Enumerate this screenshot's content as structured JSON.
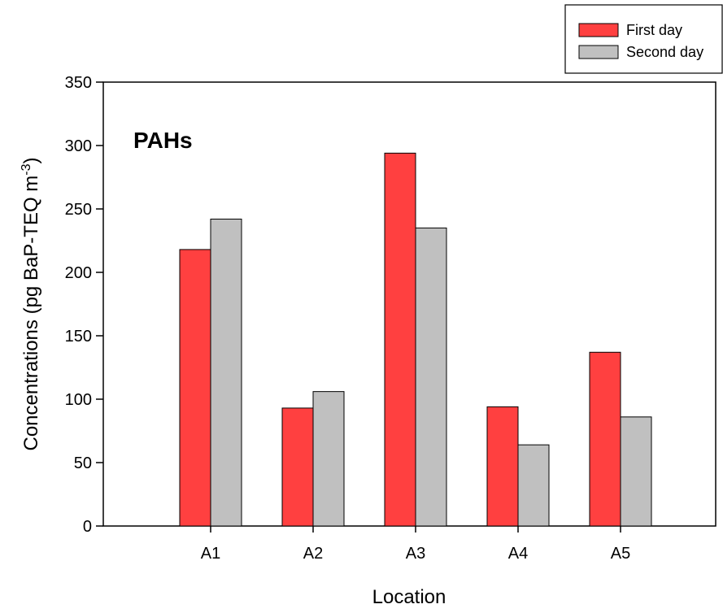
{
  "chart_data": {
    "type": "bar",
    "categories": [
      "A1",
      "A2",
      "A3",
      "A4",
      "A5"
    ],
    "series": [
      {
        "name": "First day",
        "values": [
          218,
          93,
          294,
          94,
          137
        ],
        "color": "#ff4040"
      },
      {
        "name": "Second day",
        "values": [
          242,
          106,
          235,
          64,
          86
        ],
        "color": "#c0c0c0"
      }
    ],
    "ylim": [
      0,
      350
    ],
    "yticks": [
      0,
      50,
      100,
      150,
      200,
      250,
      300,
      350
    ],
    "xlabel": "Location",
    "ylabel_text": "Concentrations (pg BaP-TEQ m",
    "ylabel_superscript": "-3",
    "ylabel_close": ")",
    "annotation": "PAHs",
    "legend": {
      "placement": "top-right",
      "entries": [
        "First day",
        "Second day"
      ]
    },
    "grid": false
  }
}
